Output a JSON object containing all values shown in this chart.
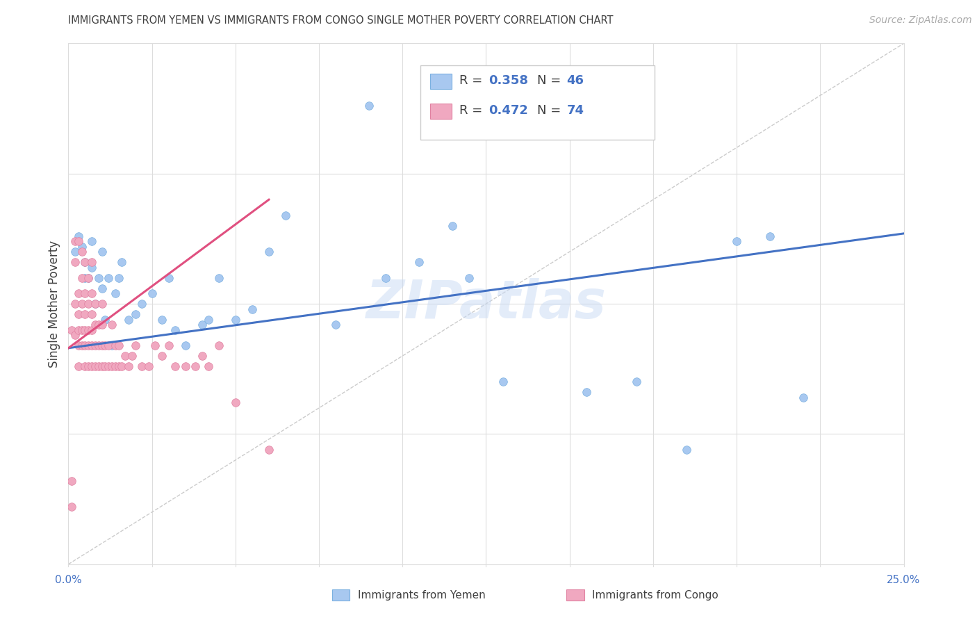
{
  "title": "IMMIGRANTS FROM YEMEN VS IMMIGRANTS FROM CONGO SINGLE MOTHER POVERTY CORRELATION CHART",
  "source": "Source: ZipAtlas.com",
  "ylabel": "Single Mother Poverty",
  "watermark": "ZIPatlas",
  "yemen_color": "#a8c8f0",
  "congo_color": "#f0a8c0",
  "yemen_edge_color": "#7ab0e0",
  "congo_edge_color": "#e080a0",
  "yemen_line_color": "#4472c4",
  "congo_line_color": "#e05080",
  "diagonal_color": "#cccccc",
  "grid_color": "#dddddd",
  "text_blue": "#4472c4",
  "text_dark": "#404040",
  "text_source": "#aaaaaa",
  "background_color": "#ffffff",
  "xlim": [
    0.0,
    0.25
  ],
  "ylim": [
    0.0,
    1.0
  ],
  "yemen_R": "0.358",
  "yemen_N": "46",
  "congo_R": "0.472",
  "congo_N": "74",
  "yemen_line_x": [
    0.0,
    0.25
  ],
  "yemen_line_y": [
    0.415,
    0.635
  ],
  "congo_line_x": [
    0.0,
    0.06
  ],
  "congo_line_y": [
    0.415,
    0.7
  ],
  "yemen_scatter_x": [
    0.002,
    0.003,
    0.004,
    0.005,
    0.005,
    0.006,
    0.007,
    0.007,
    0.008,
    0.009,
    0.01,
    0.01,
    0.011,
    0.012,
    0.013,
    0.014,
    0.015,
    0.016,
    0.018,
    0.02,
    0.022,
    0.025,
    0.028,
    0.03,
    0.032,
    0.035,
    0.04,
    0.042,
    0.045,
    0.05,
    0.055,
    0.06,
    0.065,
    0.08,
    0.09,
    0.095,
    0.105,
    0.115,
    0.12,
    0.13,
    0.155,
    0.17,
    0.185,
    0.2,
    0.21,
    0.22
  ],
  "yemen_scatter_y": [
    0.6,
    0.63,
    0.61,
    0.55,
    0.58,
    0.55,
    0.62,
    0.57,
    0.5,
    0.55,
    0.53,
    0.6,
    0.47,
    0.55,
    0.42,
    0.52,
    0.55,
    0.58,
    0.47,
    0.48,
    0.5,
    0.52,
    0.47,
    0.55,
    0.45,
    0.42,
    0.46,
    0.47,
    0.55,
    0.47,
    0.49,
    0.6,
    0.67,
    0.46,
    0.88,
    0.55,
    0.58,
    0.65,
    0.55,
    0.35,
    0.33,
    0.35,
    0.22,
    0.62,
    0.63,
    0.32
  ],
  "congo_scatter_x": [
    0.001,
    0.001,
    0.001,
    0.002,
    0.002,
    0.002,
    0.002,
    0.003,
    0.003,
    0.003,
    0.003,
    0.003,
    0.003,
    0.004,
    0.004,
    0.004,
    0.004,
    0.004,
    0.005,
    0.005,
    0.005,
    0.005,
    0.005,
    0.005,
    0.006,
    0.006,
    0.006,
    0.006,
    0.006,
    0.007,
    0.007,
    0.007,
    0.007,
    0.007,
    0.007,
    0.008,
    0.008,
    0.008,
    0.008,
    0.009,
    0.009,
    0.009,
    0.01,
    0.01,
    0.01,
    0.01,
    0.011,
    0.011,
    0.012,
    0.012,
    0.013,
    0.013,
    0.014,
    0.014,
    0.015,
    0.015,
    0.016,
    0.017,
    0.018,
    0.019,
    0.02,
    0.022,
    0.024,
    0.026,
    0.028,
    0.03,
    0.032,
    0.035,
    0.038,
    0.04,
    0.042,
    0.045,
    0.05,
    0.06
  ],
  "congo_scatter_y": [
    0.11,
    0.16,
    0.45,
    0.44,
    0.5,
    0.58,
    0.62,
    0.38,
    0.42,
    0.45,
    0.48,
    0.52,
    0.62,
    0.42,
    0.45,
    0.5,
    0.55,
    0.6,
    0.38,
    0.42,
    0.45,
    0.48,
    0.52,
    0.58,
    0.38,
    0.42,
    0.45,
    0.5,
    0.55,
    0.38,
    0.42,
    0.45,
    0.48,
    0.52,
    0.58,
    0.38,
    0.42,
    0.46,
    0.5,
    0.38,
    0.42,
    0.46,
    0.38,
    0.42,
    0.46,
    0.5,
    0.38,
    0.42,
    0.38,
    0.42,
    0.38,
    0.46,
    0.38,
    0.42,
    0.38,
    0.42,
    0.38,
    0.4,
    0.38,
    0.4,
    0.42,
    0.38,
    0.38,
    0.42,
    0.4,
    0.42,
    0.38,
    0.38,
    0.38,
    0.4,
    0.38,
    0.42,
    0.31,
    0.22
  ]
}
